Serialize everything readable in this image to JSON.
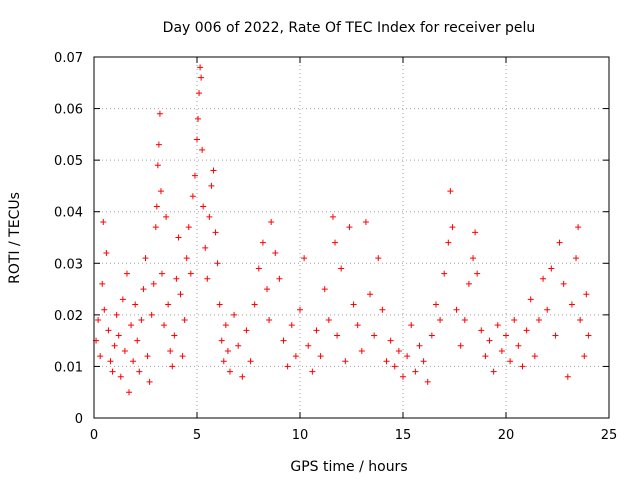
{
  "chart_data": {
    "type": "scatter",
    "title": "Day 006 of 2022, Rate Of TEC Index for receiver pelu",
    "xlabel": "GPS time / hours",
    "ylabel": "ROTI / TECUs",
    "xlim": [
      0,
      25
    ],
    "ylim": [
      0,
      0.07
    ],
    "xticks": [
      0,
      5,
      10,
      15,
      20,
      25
    ],
    "xtick_labels": [
      "0",
      "5",
      "10",
      "15",
      "20",
      "25"
    ],
    "yticks": [
      0,
      0.01,
      0.02,
      0.03,
      0.04,
      0.05,
      0.06,
      0.07
    ],
    "ytick_labels": [
      "0",
      "0.01",
      "0.02",
      "0.03",
      "0.04",
      "0.05",
      "0.06",
      "0.07"
    ],
    "grid": true,
    "marker": "+",
    "color": "#ff0000",
    "series": [
      {
        "name": "ROTI",
        "points": [
          [
            0.1,
            0.015
          ],
          [
            0.2,
            0.019
          ],
          [
            0.3,
            0.012
          ],
          [
            0.4,
            0.026
          ],
          [
            0.45,
            0.038
          ],
          [
            0.5,
            0.021
          ],
          [
            0.6,
            0.032
          ],
          [
            0.7,
            0.017
          ],
          [
            0.8,
            0.011
          ],
          [
            0.9,
            0.009
          ],
          [
            1.0,
            0.014
          ],
          [
            1.1,
            0.02
          ],
          [
            1.2,
            0.016
          ],
          [
            1.3,
            0.008
          ],
          [
            1.4,
            0.023
          ],
          [
            1.5,
            0.013
          ],
          [
            1.6,
            0.028
          ],
          [
            1.7,
            0.005
          ],
          [
            1.8,
            0.018
          ],
          [
            1.9,
            0.011
          ],
          [
            2.0,
            0.022
          ],
          [
            2.1,
            0.015
          ],
          [
            2.2,
            0.009
          ],
          [
            2.3,
            0.019
          ],
          [
            2.4,
            0.025
          ],
          [
            2.5,
            0.031
          ],
          [
            2.6,
            0.012
          ],
          [
            2.7,
            0.007
          ],
          [
            2.8,
            0.02
          ],
          [
            2.9,
            0.026
          ],
          [
            3.0,
            0.037
          ],
          [
            3.05,
            0.041
          ],
          [
            3.1,
            0.049
          ],
          [
            3.15,
            0.053
          ],
          [
            3.2,
            0.059
          ],
          [
            3.25,
            0.044
          ],
          [
            3.3,
            0.028
          ],
          [
            3.4,
            0.018
          ],
          [
            3.5,
            0.039
          ],
          [
            3.6,
            0.022
          ],
          [
            3.7,
            0.013
          ],
          [
            3.8,
            0.01
          ],
          [
            3.9,
            0.016
          ],
          [
            4.0,
            0.027
          ],
          [
            4.1,
            0.035
          ],
          [
            4.2,
            0.024
          ],
          [
            4.3,
            0.012
          ],
          [
            4.4,
            0.019
          ],
          [
            4.5,
            0.031
          ],
          [
            4.6,
            0.037
          ],
          [
            4.7,
            0.028
          ],
          [
            4.8,
            0.043
          ],
          [
            4.9,
            0.047
          ],
          [
            5.0,
            0.054
          ],
          [
            5.05,
            0.058
          ],
          [
            5.1,
            0.063
          ],
          [
            5.15,
            0.068
          ],
          [
            5.2,
            0.066
          ],
          [
            5.25,
            0.052
          ],
          [
            5.3,
            0.041
          ],
          [
            5.4,
            0.033
          ],
          [
            5.5,
            0.027
          ],
          [
            5.6,
            0.039
          ],
          [
            5.7,
            0.045
          ],
          [
            5.8,
            0.048
          ],
          [
            5.9,
            0.036
          ],
          [
            6.0,
            0.03
          ],
          [
            6.1,
            0.022
          ],
          [
            6.2,
            0.015
          ],
          [
            6.3,
            0.011
          ],
          [
            6.4,
            0.018
          ],
          [
            6.5,
            0.013
          ],
          [
            6.6,
            0.009
          ],
          [
            6.8,
            0.02
          ],
          [
            7.0,
            0.014
          ],
          [
            7.2,
            0.008
          ],
          [
            7.4,
            0.017
          ],
          [
            7.6,
            0.011
          ],
          [
            7.8,
            0.022
          ],
          [
            8.0,
            0.029
          ],
          [
            8.2,
            0.034
          ],
          [
            8.4,
            0.025
          ],
          [
            8.5,
            0.019
          ],
          [
            8.6,
            0.038
          ],
          [
            8.8,
            0.032
          ],
          [
            9.0,
            0.027
          ],
          [
            9.2,
            0.015
          ],
          [
            9.4,
            0.01
          ],
          [
            9.6,
            0.018
          ],
          [
            9.8,
            0.012
          ],
          [
            10.0,
            0.021
          ],
          [
            10.2,
            0.031
          ],
          [
            10.4,
            0.014
          ],
          [
            10.6,
            0.009
          ],
          [
            10.8,
            0.017
          ],
          [
            11.0,
            0.012
          ],
          [
            11.2,
            0.025
          ],
          [
            11.4,
            0.019
          ],
          [
            11.6,
            0.039
          ],
          [
            11.7,
            0.034
          ],
          [
            11.8,
            0.016
          ],
          [
            12.0,
            0.029
          ],
          [
            12.2,
            0.011
          ],
          [
            12.4,
            0.037
          ],
          [
            12.6,
            0.022
          ],
          [
            12.8,
            0.018
          ],
          [
            13.0,
            0.013
          ],
          [
            13.2,
            0.038
          ],
          [
            13.4,
            0.024
          ],
          [
            13.6,
            0.016
          ],
          [
            13.8,
            0.031
          ],
          [
            14.0,
            0.021
          ],
          [
            14.2,
            0.011
          ],
          [
            14.4,
            0.015
          ],
          [
            14.6,
            0.01
          ],
          [
            14.8,
            0.013
          ],
          [
            15.0,
            0.008
          ],
          [
            15.2,
            0.012
          ],
          [
            15.4,
            0.018
          ],
          [
            15.6,
            0.009
          ],
          [
            15.8,
            0.014
          ],
          [
            16.0,
            0.011
          ],
          [
            16.2,
            0.007
          ],
          [
            16.4,
            0.016
          ],
          [
            16.6,
            0.022
          ],
          [
            16.8,
            0.019
          ],
          [
            17.0,
            0.028
          ],
          [
            17.2,
            0.034
          ],
          [
            17.3,
            0.044
          ],
          [
            17.4,
            0.037
          ],
          [
            17.6,
            0.021
          ],
          [
            17.8,
            0.014
          ],
          [
            18.0,
            0.019
          ],
          [
            18.2,
            0.026
          ],
          [
            18.4,
            0.031
          ],
          [
            18.5,
            0.036
          ],
          [
            18.6,
            0.028
          ],
          [
            18.8,
            0.017
          ],
          [
            19.0,
            0.012
          ],
          [
            19.2,
            0.015
          ],
          [
            19.4,
            0.009
          ],
          [
            19.6,
            0.018
          ],
          [
            19.8,
            0.013
          ],
          [
            20.0,
            0.016
          ],
          [
            20.2,
            0.011
          ],
          [
            20.4,
            0.019
          ],
          [
            20.6,
            0.014
          ],
          [
            20.8,
            0.01
          ],
          [
            21.0,
            0.017
          ],
          [
            21.2,
            0.023
          ],
          [
            21.4,
            0.012
          ],
          [
            21.6,
            0.019
          ],
          [
            21.8,
            0.027
          ],
          [
            22.0,
            0.021
          ],
          [
            22.2,
            0.029
          ],
          [
            22.4,
            0.016
          ],
          [
            22.6,
            0.034
          ],
          [
            22.8,
            0.026
          ],
          [
            23.0,
            0.008
          ],
          [
            23.2,
            0.022
          ],
          [
            23.4,
            0.031
          ],
          [
            23.5,
            0.037
          ],
          [
            23.6,
            0.019
          ],
          [
            23.8,
            0.012
          ],
          [
            23.9,
            0.024
          ],
          [
            24.0,
            0.016
          ]
        ]
      }
    ]
  }
}
